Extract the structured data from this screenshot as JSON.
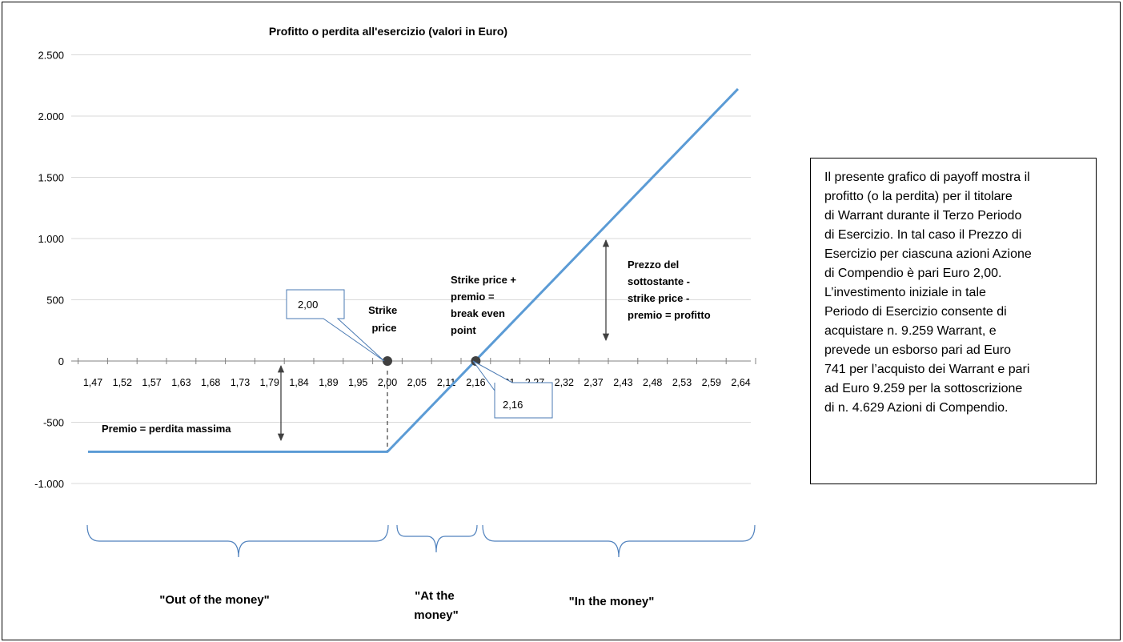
{
  "chart_data": {
    "type": "line",
    "title": "Profitto o perdita all'esercizio (valori in Euro)",
    "xlabel": "",
    "ylabel": "",
    "x_tick_labels": [
      "1,47",
      "1,52",
      "1,57",
      "1,63",
      "1,68",
      "1,73",
      "1,79",
      "1,84",
      "1,89",
      "1,95",
      "2,00",
      "2,05",
      "2,11",
      "2,16",
      "2,21",
      "2,27",
      "2,32",
      "2,37",
      "2,43",
      "2,48",
      "2,53",
      "2,59",
      "2,64"
    ],
    "y_ticks": [
      2500,
      2000,
      1500,
      1000,
      500,
      0,
      -500,
      -1000
    ],
    "y_tick_labels": [
      "2.500",
      "2.000",
      "1.500",
      "1.000",
      "500",
      "0",
      "-500",
      "-1.000"
    ],
    "ylim": [
      -1250,
      2500
    ],
    "grid": true,
    "series": [
      {
        "x": [
          1.47,
          2.0,
          2.64
        ],
        "y": [
          -741,
          -741,
          2222
        ],
        "color": "#5b9bd5"
      }
    ],
    "points": [
      {
        "x": 2.0,
        "y": 0,
        "label": "2,00"
      },
      {
        "x": 2.16,
        "y": 0,
        "label": "2,16"
      }
    ],
    "annotations": {
      "strike": "Strike price",
      "break_even": "Strike price + premio = break even point",
      "profit": "Prezzo del sottostante - strike price - premio = profitto",
      "premium": "Premio = perdita massima"
    },
    "regions": [
      "\"Out of the money\"",
      "\"At the money\"",
      "\"In the money\""
    ]
  },
  "note": {
    "lines": [
      "Il presente grafico di payoff mostra il",
      "profitto (o la perdita) per il titolare",
      "di Warrant durante il Terzo Periodo",
      "di Esercizio. In tal caso il Prezzo di",
      "Esercizio per ciascuna azioni Azione",
      "di Compendio è pari Euro 2,00.",
      "L’investimento iniziale in tale",
      "Periodo di Esercizio consente di",
      "acquistare n. 9.259 Warrant, e",
      "prevede un esborso pari ad Euro",
      "741 per l’acquisto dei Warrant e pari",
      "ad Euro 9.259 per la sottoscrizione",
      "di n. 4.629 Azioni di Compendio."
    ]
  },
  "colors": {
    "line": "#5b9bd5",
    "brace": "#4f81bd",
    "grid": "#d9d9d9",
    "marker": "#404040"
  }
}
